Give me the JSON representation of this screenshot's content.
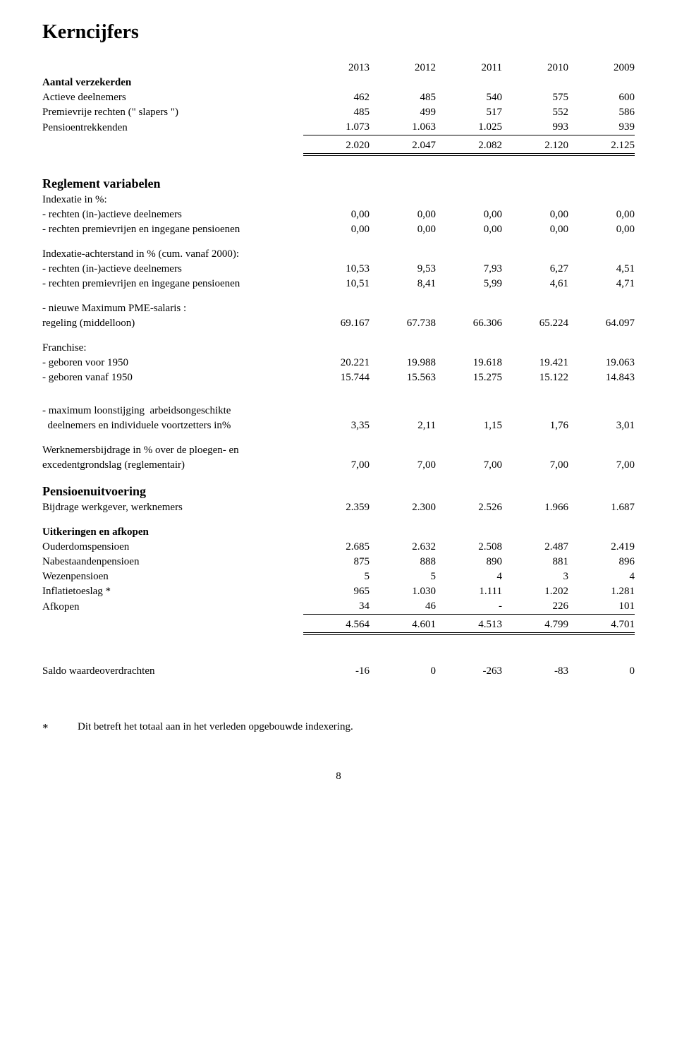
{
  "title": "Kerncijfers",
  "years": [
    "2013",
    "2012",
    "2011",
    "2010",
    "2009"
  ],
  "aantal": {
    "heading": "Aantal verzekerden",
    "rows": [
      {
        "label": "Actieve deelnemers",
        "vals": [
          "462",
          "485",
          "540",
          "575",
          "600"
        ]
      },
      {
        "label": "Premievrije rechten (\" slapers \")",
        "vals": [
          "485",
          "499",
          "517",
          "552",
          "586"
        ]
      },
      {
        "label": "Pensioentrekkenden",
        "vals": [
          "1.073",
          "1.063",
          "1.025",
          "993",
          "939"
        ]
      }
    ],
    "total": [
      "2.020",
      "2.047",
      "2.082",
      "2.120",
      "2.125"
    ]
  },
  "reglement": {
    "heading": "Reglement variabelen",
    "indexatie_label": "Indexatie in %:",
    "rows1": [
      {
        "label": "- rechten (in-)actieve deelnemers",
        "vals": [
          "0,00",
          "0,00",
          "0,00",
          "0,00",
          "0,00"
        ]
      },
      {
        "label": "- rechten premievrijen en ingegane pensioenen",
        "vals": [
          "0,00",
          "0,00",
          "0,00",
          "0,00",
          "0,00"
        ]
      }
    ],
    "achterstand_label": "Indexatie-achterstand in % (cum. vanaf 2000):",
    "rows2": [
      {
        "label": "- rechten (in-)actieve deelnemers",
        "vals": [
          "10,53",
          "9,53",
          "7,93",
          "6,27",
          "4,51"
        ]
      },
      {
        "label": "- rechten premievrijen en ingegane pensioenen",
        "vals": [
          "10,51",
          "8,41",
          "5,99",
          "4,61",
          "4,71"
        ]
      }
    ],
    "pme_label1": "- nieuwe Maximum PME-salaris :",
    "pme_label2": "regeling (middelloon)",
    "pme_vals": [
      "69.167",
      "67.738",
      "66.306",
      "65.224",
      "64.097"
    ],
    "franchise_label": "Franchise:",
    "rows3": [
      {
        "label": "- geboren voor 1950",
        "vals": [
          "20.221",
          "19.988",
          "19.618",
          "19.421",
          "19.063"
        ]
      },
      {
        "label": "- geboren vanaf 1950",
        "vals": [
          "15.744",
          "15.563",
          "15.275",
          "15.122",
          "14.843"
        ]
      }
    ],
    "loon_label1": "- maximum loonstijging  arbeidsongeschikte",
    "loon_label2": "  deelnemers en individuele voortzetters in%",
    "loon_vals": [
      "3,35",
      "2,11",
      "1,15",
      "1,76",
      "3,01"
    ],
    "werk_label1": "Werknemersbijdrage in % over de ploegen- en",
    "werk_label2": "excedentgrondslag (reglementair)",
    "werk_vals": [
      "7,00",
      "7,00",
      "7,00",
      "7,00",
      "7,00"
    ]
  },
  "pensioen": {
    "heading": "Pensioenuitvoering",
    "bijdrage": {
      "label": "Bijdrage werkgever, werknemers",
      "vals": [
        "2.359",
        "2.300",
        "2.526",
        "1.966",
        "1.687"
      ]
    },
    "uit_heading": "Uitkeringen en afkopen",
    "rows": [
      {
        "label": "Ouderdomspensioen",
        "vals": [
          "2.685",
          "2.632",
          "2.508",
          "2.487",
          "2.419"
        ]
      },
      {
        "label": "Nabestaandenpensioen",
        "vals": [
          "875",
          "888",
          "890",
          "881",
          "896"
        ]
      },
      {
        "label": "Wezenpensioen",
        "vals": [
          "5",
          "5",
          "4",
          "3",
          "4"
        ]
      },
      {
        "label": "Inflatietoeslag *",
        "vals": [
          "965",
          "1.030",
          "1.111",
          "1.202",
          "1.281"
        ]
      },
      {
        "label": "Afkopen",
        "vals": [
          "34",
          "46",
          "-",
          "226",
          "101"
        ]
      }
    ],
    "total": [
      "4.564",
      "4.601",
      "4.513",
      "4.799",
      "4.701"
    ]
  },
  "saldo": {
    "label": "Saldo waardeoverdrachten",
    "vals": [
      "-16",
      "0",
      "-263",
      "-83",
      "0"
    ]
  },
  "footnote_mark": "*",
  "footnote_text": "Dit betreft het totaal aan in het verleden opgebouwde indexering.",
  "page_num": "8"
}
